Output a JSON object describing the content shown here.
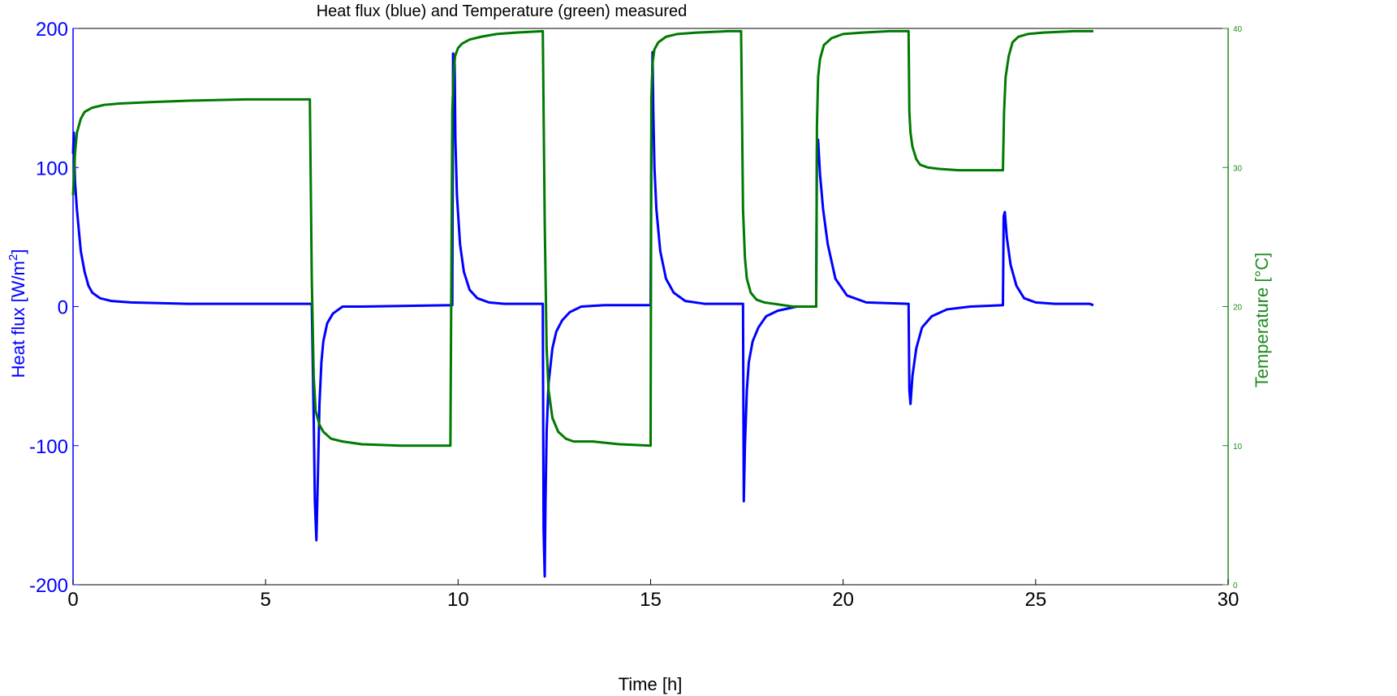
{
  "chart_data": {
    "type": "line",
    "title": "Heat flux (blue) and Temperature (green) measured",
    "xlabel": "Time [h]",
    "ylabel_left": "Heat flux [W/m",
    "ylabel_left_sup": "2",
    "ylabel_left_close": "]",
    "ylabel_right": "Temperature [°C]",
    "xlim": [
      0,
      30
    ],
    "ylim_left": [
      -200,
      200
    ],
    "ylim_right": [
      0,
      40
    ],
    "x_ticks": [
      "0",
      "5",
      "10",
      "15",
      "20",
      "25",
      "30"
    ],
    "y_left_ticks": [
      "-200",
      "-100",
      "0",
      "100",
      "200"
    ],
    "y_right_ticks": [
      "0",
      "10",
      "20",
      "30",
      "40"
    ],
    "grid": false,
    "colors": {
      "left_axis": "#0000ff",
      "right_axis": "#228b22",
      "heat_flux": "#0000ff",
      "temperature": "#007a00"
    },
    "series": [
      {
        "axis": "left",
        "x": [
          0.0,
          0.02,
          0.05,
          0.1,
          0.15,
          0.2,
          0.3,
          0.4,
          0.5,
          0.7,
          1.0,
          1.5,
          3.0,
          6.2,
          6.25,
          6.28,
          6.32,
          6.36,
          6.4,
          6.45,
          6.5,
          6.6,
          6.75,
          7.0,
          7.5,
          9.85,
          9.87,
          9.89,
          9.91,
          9.93,
          9.97,
          10.05,
          10.15,
          10.3,
          10.5,
          10.8,
          11.2,
          12.2,
          12.22,
          12.25,
          12.27,
          12.3,
          12.35,
          12.45,
          12.55,
          12.7,
          12.9,
          13.2,
          13.8,
          15.0,
          15.02,
          15.05,
          15.07,
          15.1,
          15.15,
          15.25,
          15.4,
          15.6,
          15.9,
          16.4,
          17.4,
          17.42,
          17.45,
          17.5,
          17.55,
          17.65,
          17.8,
          18.0,
          18.3,
          18.8,
          19.3,
          19.32,
          19.35,
          19.4,
          19.48,
          19.6,
          19.8,
          20.1,
          20.6,
          21.7,
          21.72,
          21.75,
          21.8,
          21.9,
          22.05,
          22.3,
          22.7,
          23.3,
          24.15,
          24.17,
          24.2,
          24.25,
          24.35,
          24.5,
          24.7,
          25.0,
          25.5,
          26.4,
          26.5
        ],
        "y": [
          110,
          125,
          90,
          70,
          55,
          40,
          25,
          15,
          10,
          6,
          4,
          3,
          2,
          2,
          -80,
          -140,
          -168,
          -120,
          -70,
          -40,
          -25,
          -12,
          -5,
          0,
          0,
          1,
          182,
          150,
          175,
          120,
          80,
          45,
          25,
          12,
          6,
          3,
          2,
          2,
          -160,
          -194,
          -140,
          -90,
          -55,
          -30,
          -18,
          -10,
          -4,
          0,
          1,
          1,
          120,
          183,
          140,
          100,
          70,
          40,
          20,
          10,
          4,
          2,
          2,
          -140,
          -100,
          -60,
          -40,
          -25,
          -15,
          -7,
          -3,
          0,
          0,
          115,
          120,
          95,
          70,
          45,
          20,
          8,
          3,
          2,
          -60,
          -70,
          -50,
          -30,
          -15,
          -7,
          -2,
          0,
          1,
          65,
          68,
          50,
          30,
          15,
          6,
          3,
          2,
          2,
          1
        ]
      },
      {
        "axis": "right",
        "x": [
          0.0,
          0.05,
          0.1,
          0.2,
          0.3,
          0.5,
          0.8,
          1.2,
          2.0,
          3.0,
          4.5,
          6.15,
          6.2,
          6.25,
          6.3,
          6.4,
          6.5,
          6.7,
          7.0,
          7.5,
          8.5,
          9.8,
          9.85,
          9.88,
          9.92,
          10.0,
          10.1,
          10.3,
          10.6,
          11.0,
          11.5,
          12.2,
          12.25,
          12.3,
          12.35,
          12.45,
          12.6,
          12.8,
          13.0,
          13.5,
          14.2,
          15.0,
          15.02,
          15.05,
          15.1,
          15.2,
          15.4,
          15.7,
          16.2,
          17.0,
          17.35,
          17.4,
          17.45,
          17.5,
          17.6,
          17.75,
          17.95,
          18.2,
          18.7,
          19.3,
          19.32,
          19.35,
          19.4,
          19.5,
          19.7,
          20.0,
          20.5,
          21.2,
          21.7,
          21.72,
          21.75,
          21.8,
          21.9,
          22.0,
          22.2,
          22.5,
          23.0,
          24.15,
          24.18,
          24.22,
          24.3,
          24.4,
          24.55,
          24.8,
          25.2,
          26.0,
          26.5
        ],
        "y": [
          28.0,
          31.0,
          32.5,
          33.5,
          34.0,
          34.3,
          34.5,
          34.6,
          34.7,
          34.8,
          34.9,
          34.9,
          22.0,
          15.0,
          12.5,
          11.5,
          11.0,
          10.5,
          10.3,
          10.1,
          10.0,
          10.0,
          34.0,
          36.5,
          38.0,
          38.6,
          38.9,
          39.2,
          39.4,
          39.6,
          39.7,
          39.8,
          26.0,
          17.0,
          14.0,
          12.0,
          11.0,
          10.5,
          10.3,
          10.3,
          10.1,
          10.0,
          35.0,
          37.5,
          38.5,
          39.0,
          39.4,
          39.6,
          39.7,
          39.8,
          39.8,
          27.0,
          23.5,
          22.0,
          21.0,
          20.5,
          20.3,
          20.2,
          20.0,
          20.0,
          33.0,
          36.5,
          37.8,
          38.8,
          39.3,
          39.6,
          39.7,
          39.8,
          39.8,
          34.0,
          32.5,
          31.5,
          30.6,
          30.2,
          30.0,
          29.9,
          29.8,
          29.8,
          34.0,
          36.5,
          38.0,
          39.0,
          39.4,
          39.6,
          39.7,
          39.8,
          39.8
        ]
      }
    ]
  }
}
